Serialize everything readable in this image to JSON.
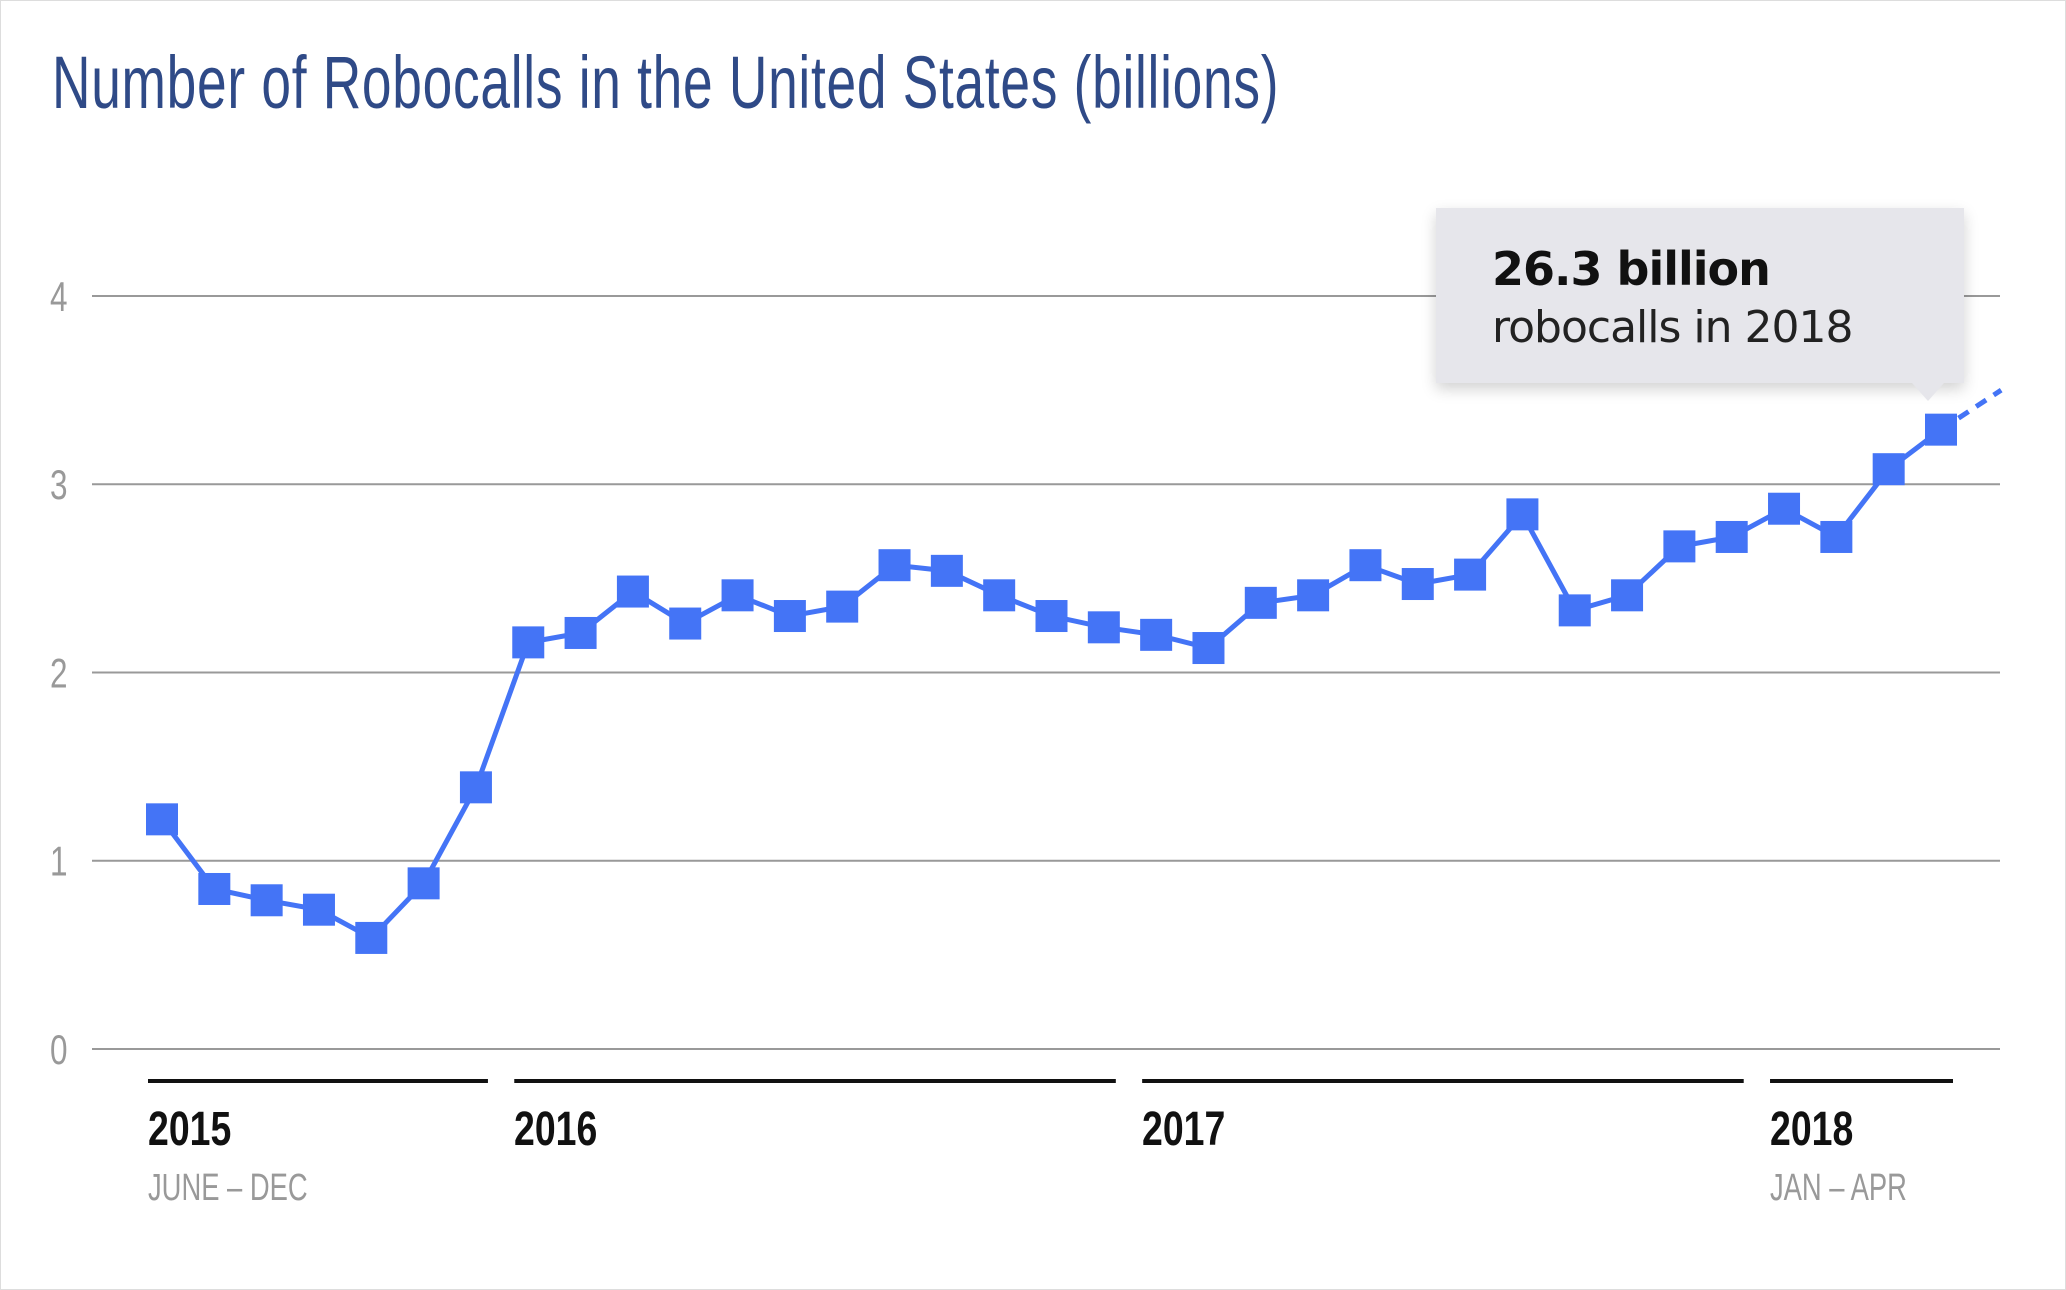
{
  "chart_data": {
    "type": "line",
    "title": "Number of Robocalls in the United States (billions)",
    "xlabel": "",
    "ylabel": "",
    "ylim": [
      0,
      4
    ],
    "yticks": [
      0,
      1,
      2,
      3,
      4
    ],
    "grid": true,
    "color": "#4474f6",
    "x": [
      "2015-06",
      "2015-07",
      "2015-08",
      "2015-09",
      "2015-10",
      "2015-11",
      "2015-12",
      "2016-01",
      "2016-02",
      "2016-03",
      "2016-04",
      "2016-05",
      "2016-06",
      "2016-07",
      "2016-08",
      "2016-09",
      "2016-10",
      "2016-11",
      "2016-12",
      "2017-01",
      "2017-02",
      "2017-03",
      "2017-04",
      "2017-05",
      "2017-06",
      "2017-07",
      "2017-08",
      "2017-09",
      "2017-10",
      "2017-11",
      "2017-12",
      "2018-01",
      "2018-02",
      "2018-03",
      "2018-04"
    ],
    "values": [
      1.22,
      0.85,
      0.79,
      0.74,
      0.59,
      0.88,
      1.39,
      2.16,
      2.21,
      2.43,
      2.26,
      2.41,
      2.3,
      2.35,
      2.57,
      2.54,
      2.41,
      2.3,
      2.24,
      2.2,
      2.13,
      2.37,
      2.41,
      2.57,
      2.47,
      2.52,
      2.84,
      2.33,
      2.41,
      2.67,
      2.72,
      2.87,
      2.72,
      3.08,
      3.29
    ],
    "projection_end": 3.5,
    "year_groups": [
      {
        "year": "2015",
        "range": "JUNE – DEC",
        "first": 0,
        "last": 6
      },
      {
        "year": "2016",
        "range": "",
        "first": 7,
        "last": 18
      },
      {
        "year": "2017",
        "range": "",
        "first": 19,
        "last": 30
      },
      {
        "year": "2018",
        "range": "JAN – APR",
        "first": 31,
        "last": 34
      }
    ],
    "annotation": {
      "headline": "26.3 billion",
      "text": "robocalls in 2018",
      "point_index": 34
    }
  }
}
